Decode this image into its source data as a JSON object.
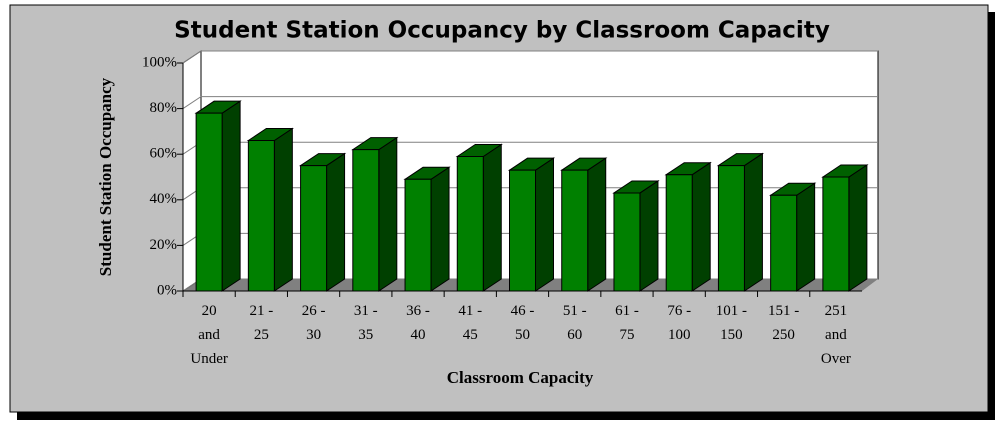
{
  "chart_data": {
    "type": "bar3d",
    "title": "Student Station Occupancy by Classroom Capacity",
    "x_label": "Classroom Capacity",
    "y_label": "Student Station Occupancy",
    "categories": [
      "20 and Under",
      "21 - 25",
      "26 - 30",
      "31 - 35",
      "36 - 40",
      "41 - 45",
      "46 - 50",
      "51 - 60",
      "61 - 75",
      "76 - 100",
      "101 - 150",
      "151 - 250",
      "251 and Over"
    ],
    "values": [
      78,
      66,
      55,
      62,
      49,
      59,
      53,
      53,
      43,
      51,
      55,
      42,
      50
    ],
    "color": "#008000",
    "ylim": [
      0,
      100
    ],
    "yticks": [
      {
        "value": 0,
        "label": "0%"
      },
      {
        "value": 20,
        "label": "20%"
      },
      {
        "value": 40,
        "label": "40%"
      },
      {
        "value": 60,
        "label": "60%"
      },
      {
        "value": 80,
        "label": "80%"
      },
      {
        "value": 100,
        "label": "100%"
      }
    ],
    "grid": true
  }
}
